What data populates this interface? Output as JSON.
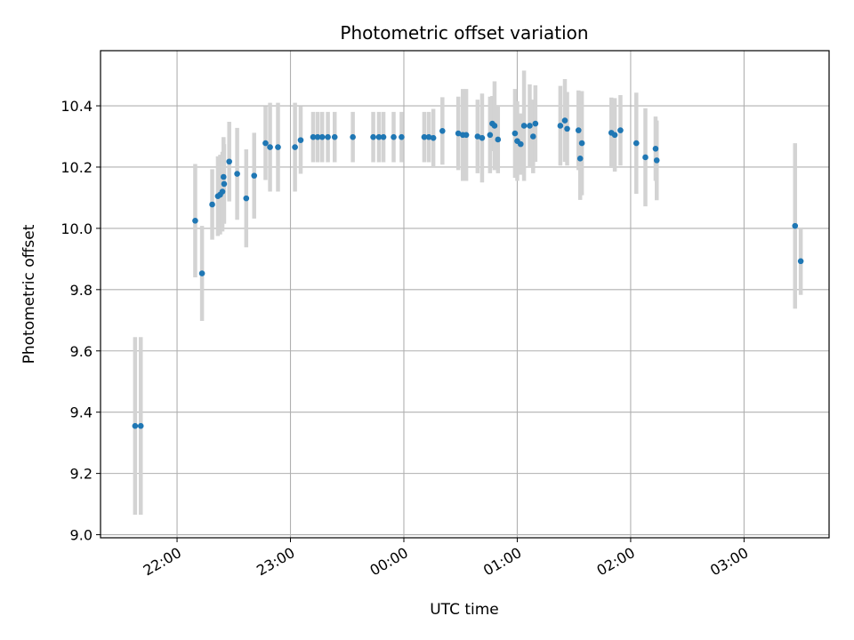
{
  "chart_data": {
    "type": "scatter",
    "title": "Photometric offset variation",
    "xlabel": "UTC time",
    "ylabel": "Photometric offset",
    "x_unit": "hours relative to 00:00 UTC",
    "xlim": [
      -2.675,
      3.75
    ],
    "ylim": [
      8.99,
      10.58
    ],
    "xticks": [
      {
        "value": -2,
        "label": "22:00"
      },
      {
        "value": -1,
        "label": "23:00"
      },
      {
        "value": 0,
        "label": "00:00"
      },
      {
        "value": 1,
        "label": "01:00"
      },
      {
        "value": 2,
        "label": "02:00"
      },
      {
        "value": 3,
        "label": "03:00"
      }
    ],
    "yticks": [
      9.0,
      9.2,
      9.4,
      9.6,
      9.8,
      10.0,
      10.2,
      10.4
    ],
    "ytick_labels": [
      "9.0",
      "9.2",
      "9.4",
      "9.6",
      "9.8",
      "10.0",
      "10.2",
      "10.4"
    ],
    "grid": true,
    "colors": {
      "marker": "#1f77b4",
      "errorbar": "#d3d3d3",
      "grid": "#b0b0b0"
    },
    "series": [
      {
        "points": [
          {
            "x": -2.37,
            "y": 9.355,
            "yerr": 0.29
          },
          {
            "x": -2.32,
            "y": 9.355,
            "yerr": 0.29
          },
          {
            "x": -1.84,
            "y": 10.025,
            "yerr": 0.185
          },
          {
            "x": -1.78,
            "y": 9.853,
            "yerr": 0.155
          },
          {
            "x": -1.69,
            "y": 10.078,
            "yerr": 0.115
          },
          {
            "x": -1.64,
            "y": 10.105,
            "yerr": 0.13
          },
          {
            "x": -1.62,
            "y": 10.11,
            "yerr": 0.13
          },
          {
            "x": -1.6,
            "y": 10.12,
            "yerr": 0.13
          },
          {
            "x": -1.59,
            "y": 10.168,
            "yerr": 0.13
          },
          {
            "x": -1.585,
            "y": 10.145,
            "yerr": 0.13
          },
          {
            "x": -1.54,
            "y": 10.218,
            "yerr": 0.13
          },
          {
            "x": -1.47,
            "y": 10.178,
            "yerr": 0.15
          },
          {
            "x": -1.39,
            "y": 10.098,
            "yerr": 0.16
          },
          {
            "x": -1.32,
            "y": 10.172,
            "yerr": 0.14
          },
          {
            "x": -1.22,
            "y": 10.278,
            "yerr": 0.12
          },
          {
            "x": -1.18,
            "y": 10.265,
            "yerr": 0.145
          },
          {
            "x": -1.11,
            "y": 10.265,
            "yerr": 0.145
          },
          {
            "x": -0.96,
            "y": 10.265,
            "yerr": 0.145
          },
          {
            "x": -0.91,
            "y": 10.288,
            "yerr": 0.11
          },
          {
            "x": -0.8,
            "y": 10.298,
            "yerr": 0.082
          },
          {
            "x": -0.76,
            "y": 10.298,
            "yerr": 0.082
          },
          {
            "x": -0.72,
            "y": 10.298,
            "yerr": 0.082
          },
          {
            "x": -0.67,
            "y": 10.298,
            "yerr": 0.082
          },
          {
            "x": -0.61,
            "y": 10.298,
            "yerr": 0.082
          },
          {
            "x": -0.45,
            "y": 10.298,
            "yerr": 0.082
          },
          {
            "x": -0.27,
            "y": 10.298,
            "yerr": 0.082
          },
          {
            "x": -0.22,
            "y": 10.298,
            "yerr": 0.082
          },
          {
            "x": -0.18,
            "y": 10.298,
            "yerr": 0.082
          },
          {
            "x": -0.09,
            "y": 10.298,
            "yerr": 0.082
          },
          {
            "x": -0.02,
            "y": 10.298,
            "yerr": 0.082
          },
          {
            "x": 0.18,
            "y": 10.298,
            "yerr": 0.082
          },
          {
            "x": 0.22,
            "y": 10.298,
            "yerr": 0.082
          },
          {
            "x": 0.26,
            "y": 10.295,
            "yerr": 0.095
          },
          {
            "x": 0.34,
            "y": 10.318,
            "yerr": 0.11
          },
          {
            "x": 0.48,
            "y": 10.31,
            "yerr": 0.12
          },
          {
            "x": 0.52,
            "y": 10.305,
            "yerr": 0.15
          },
          {
            "x": 0.55,
            "y": 10.305,
            "yerr": 0.15
          },
          {
            "x": 0.65,
            "y": 10.3,
            "yerr": 0.12
          },
          {
            "x": 0.69,
            "y": 10.295,
            "yerr": 0.145
          },
          {
            "x": 0.76,
            "y": 10.305,
            "yerr": 0.125
          },
          {
            "x": 0.78,
            "y": 10.342,
            "yerr": 0.09
          },
          {
            "x": 0.8,
            "y": 10.335,
            "yerr": 0.145
          },
          {
            "x": 0.83,
            "y": 10.29,
            "yerr": 0.11
          },
          {
            "x": 0.98,
            "y": 10.31,
            "yerr": 0.145
          },
          {
            "x": 1.0,
            "y": 10.285,
            "yerr": 0.13
          },
          {
            "x": 1.03,
            "y": 10.275,
            "yerr": 0.1
          },
          {
            "x": 1.06,
            "y": 10.335,
            "yerr": 0.18
          },
          {
            "x": 1.11,
            "y": 10.335,
            "yerr": 0.135
          },
          {
            "x": 1.14,
            "y": 10.3,
            "yerr": 0.12
          },
          {
            "x": 1.16,
            "y": 10.342,
            "yerr": 0.125
          },
          {
            "x": 1.38,
            "y": 10.335,
            "yerr": 0.13
          },
          {
            "x": 1.42,
            "y": 10.352,
            "yerr": 0.135
          },
          {
            "x": 1.44,
            "y": 10.325,
            "yerr": 0.12
          },
          {
            "x": 1.54,
            "y": 10.32,
            "yerr": 0.13
          },
          {
            "x": 1.555,
            "y": 10.228,
            "yerr": 0.135
          },
          {
            "x": 1.57,
            "y": 10.278,
            "yerr": 0.17
          },
          {
            "x": 1.83,
            "y": 10.312,
            "yerr": 0.115
          },
          {
            "x": 1.86,
            "y": 10.305,
            "yerr": 0.12
          },
          {
            "x": 1.91,
            "y": 10.32,
            "yerr": 0.115
          },
          {
            "x": 2.05,
            "y": 10.278,
            "yerr": 0.165
          },
          {
            "x": 2.13,
            "y": 10.232,
            "yerr": 0.16
          },
          {
            "x": 2.22,
            "y": 10.26,
            "yerr": 0.105
          },
          {
            "x": 2.23,
            "y": 10.222,
            "yerr": 0.13
          },
          {
            "x": 3.45,
            "y": 10.008,
            "yerr": 0.27
          },
          {
            "x": 3.5,
            "y": 9.893,
            "yerr": 0.11
          }
        ]
      }
    ]
  }
}
